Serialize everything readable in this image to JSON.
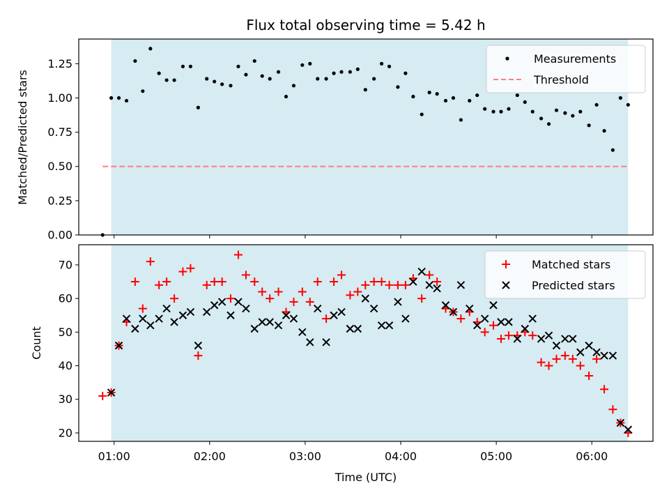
{
  "chart_data": [
    {
      "type": "scatter",
      "title": "Flux total observing time = 5.42 h",
      "xlabel": "",
      "ylabel": "Matched/Predicted stars",
      "ylim": [
        0,
        1.43
      ],
      "yticks": [
        "0.00",
        "0.25",
        "0.50",
        "0.75",
        "1.00",
        "1.25"
      ],
      "ytick_values": [
        0,
        0.25,
        0.5,
        0.75,
        1.0,
        1.25
      ],
      "legend_position": "top-right",
      "highlight_span": {
        "start": 0.97,
        "end": 6.38,
        "color": "#add8e6"
      },
      "threshold": {
        "name": "Threshold",
        "value": 0.5,
        "x_start": 0.88,
        "x_end": 6.38,
        "color": "#ff7f7f",
        "style": "dashed"
      },
      "series": [
        {
          "name": "Measurements",
          "marker": "dot",
          "color": "#000000",
          "x": [
            0.88,
            0.97,
            1.05,
            1.13,
            1.22,
            1.3,
            1.38,
            1.47,
            1.55,
            1.63,
            1.72,
            1.8,
            1.88,
            1.97,
            2.05,
            2.13,
            2.22,
            2.3,
            2.38,
            2.47,
            2.55,
            2.63,
            2.72,
            2.8,
            2.88,
            2.97,
            3.05,
            3.13,
            3.22,
            3.3,
            3.38,
            3.47,
            3.55,
            3.63,
            3.72,
            3.8,
            3.88,
            3.97,
            4.05,
            4.13,
            4.22,
            4.3,
            4.38,
            4.47,
            4.55,
            4.63,
            4.72,
            4.8,
            4.88,
            4.97,
            5.05,
            5.13,
            5.22,
            5.3,
            5.38,
            5.47,
            5.55,
            5.63,
            5.72,
            5.8,
            5.88,
            5.97,
            6.05,
            6.13,
            6.22,
            6.3,
            6.38
          ],
          "y": [
            0.0,
            1.0,
            1.0,
            0.98,
            1.27,
            1.05,
            1.36,
            1.18,
            1.13,
            1.13,
            1.23,
            1.23,
            0.93,
            1.14,
            1.12,
            1.1,
            1.09,
            1.23,
            1.17,
            1.27,
            1.16,
            1.14,
            1.19,
            1.01,
            1.09,
            1.24,
            1.25,
            1.14,
            1.14,
            1.18,
            1.19,
            1.19,
            1.21,
            1.06,
            1.14,
            1.25,
            1.23,
            1.08,
            1.18,
            1.01,
            0.88,
            1.04,
            1.03,
            0.98,
            1.0,
            0.84,
            0.98,
            1.02,
            0.92,
            0.9,
            0.9,
            0.92,
            1.02,
            0.97,
            0.9,
            0.85,
            0.81,
            0.91,
            0.89,
            0.87,
            0.9,
            0.8,
            0.95,
            0.76,
            0.62,
            1.0,
            0.95
          ]
        }
      ]
    },
    {
      "type": "scatter",
      "title": "",
      "xlabel": "Time (UTC)",
      "ylabel": "Count",
      "ylim": [
        17.5,
        76
      ],
      "yticks": [
        "20",
        "30",
        "40",
        "50",
        "60",
        "70"
      ],
      "ytick_values": [
        20,
        30,
        40,
        50,
        60,
        70
      ],
      "xlim": [
        0.63,
        6.64
      ],
      "xticks": [
        "01:00",
        "02:00",
        "03:00",
        "04:00",
        "05:00",
        "06:00"
      ],
      "xtick_values": [
        1,
        2,
        3,
        4,
        5,
        6
      ],
      "legend_position": "top-right",
      "highlight_span": {
        "start": 0.97,
        "end": 6.38,
        "color": "#add8e6"
      },
      "series": [
        {
          "name": "Matched stars",
          "marker": "plus",
          "color": "#ff0000",
          "x": [
            0.88,
            0.97,
            1.05,
            1.13,
            1.22,
            1.3,
            1.38,
            1.47,
            1.55,
            1.63,
            1.72,
            1.8,
            1.88,
            1.97,
            2.05,
            2.13,
            2.22,
            2.3,
            2.38,
            2.47,
            2.55,
            2.63,
            2.72,
            2.8,
            2.88,
            2.97,
            3.05,
            3.13,
            3.22,
            3.3,
            3.38,
            3.47,
            3.55,
            3.63,
            3.72,
            3.8,
            3.88,
            3.97,
            4.05,
            4.13,
            4.22,
            4.3,
            4.38,
            4.47,
            4.55,
            4.63,
            4.72,
            4.8,
            4.88,
            4.97,
            5.05,
            5.13,
            5.22,
            5.3,
            5.38,
            5.47,
            5.55,
            5.63,
            5.72,
            5.8,
            5.88,
            5.97,
            6.05,
            6.13,
            6.22,
            6.3,
            6.38
          ],
          "y": [
            31,
            32,
            46,
            53,
            65,
            57,
            71,
            64,
            65,
            60,
            68,
            69,
            43,
            64,
            65,
            65,
            60,
            73,
            67,
            65,
            62,
            60,
            62,
            56,
            59,
            62,
            59,
            65,
            54,
            65,
            67,
            61,
            62,
            64,
            65,
            65,
            64,
            64,
            64,
            66,
            60,
            67,
            65,
            57,
            56,
            54,
            56,
            53,
            50,
            52,
            48,
            49,
            49,
            50,
            49,
            41,
            40,
            42,
            43,
            42,
            40,
            37,
            42,
            33,
            27,
            23,
            20
          ]
        },
        {
          "name": "Predicted stars",
          "marker": "x",
          "color": "#000000",
          "x": [
            0.97,
            1.05,
            1.13,
            1.22,
            1.3,
            1.38,
            1.47,
            1.55,
            1.63,
            1.72,
            1.8,
            1.88,
            1.97,
            2.05,
            2.13,
            2.22,
            2.3,
            2.38,
            2.47,
            2.55,
            2.63,
            2.72,
            2.8,
            2.88,
            2.97,
            3.05,
            3.13,
            3.22,
            3.3,
            3.38,
            3.47,
            3.55,
            3.63,
            3.72,
            3.8,
            3.88,
            3.97,
            4.05,
            4.13,
            4.22,
            4.3,
            4.38,
            4.47,
            4.55,
            4.63,
            4.72,
            4.8,
            4.88,
            4.97,
            5.05,
            5.13,
            5.22,
            5.3,
            5.38,
            5.47,
            5.55,
            5.63,
            5.72,
            5.8,
            5.88,
            5.97,
            6.05,
            6.13,
            6.22,
            6.3,
            6.38
          ],
          "y": [
            32,
            46,
            54,
            51,
            54,
            52,
            54,
            57,
            53,
            55,
            56,
            46,
            56,
            58,
            59,
            55,
            59,
            57,
            51,
            53,
            53,
            52,
            55,
            54,
            50,
            47,
            57,
            47,
            55,
            56,
            51,
            51,
            60,
            57,
            52,
            52,
            59,
            54,
            65,
            68,
            64,
            63,
            58,
            56,
            64,
            57,
            52,
            54,
            58,
            53,
            53,
            48,
            51,
            54,
            48,
            49,
            46,
            48,
            48,
            44,
            46,
            44,
            43,
            43,
            23,
            21
          ]
        }
      ]
    }
  ]
}
